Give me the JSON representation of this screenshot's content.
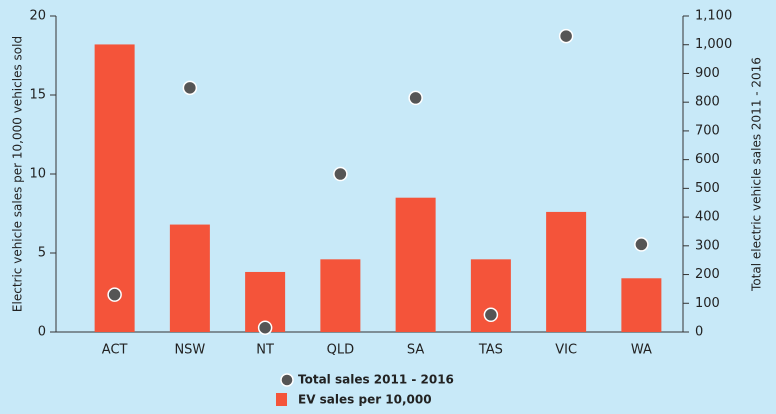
{
  "chart_data": {
    "type": "bar",
    "categories": [
      "ACT",
      "NSW",
      "NT",
      "QLD",
      "SA",
      "TAS",
      "VIC",
      "WA"
    ],
    "series": [
      {
        "name": "EV sales per 10,000",
        "type": "bar",
        "color": "#f4543a",
        "values": [
          18.2,
          6.8,
          3.8,
          4.6,
          8.5,
          4.6,
          7.6,
          3.4
        ]
      },
      {
        "name": "Total sales 2011 - 2016",
        "type": "scatter",
        "axis": "y2",
        "color": "#555555",
        "values": [
          130,
          850,
          15,
          550,
          815,
          60,
          1030,
          305
        ]
      }
    ],
    "y_label": "Electric vehicle sales per 10,000 vehicles sold",
    "y2_label": "Total electric vehicle sales 2011 - 2016",
    "ylim": [
      0,
      20
    ],
    "yticks": [
      0,
      5,
      10,
      15,
      20
    ],
    "y2lim": [
      0,
      1100
    ],
    "y2ticks": [
      0,
      100,
      200,
      300,
      400,
      500,
      600,
      700,
      800,
      900,
      {
        "value": 1000,
        "label": "1,000"
      },
      {
        "value": 1100,
        "label": "1,100"
      }
    ],
    "legend": "bottom"
  }
}
